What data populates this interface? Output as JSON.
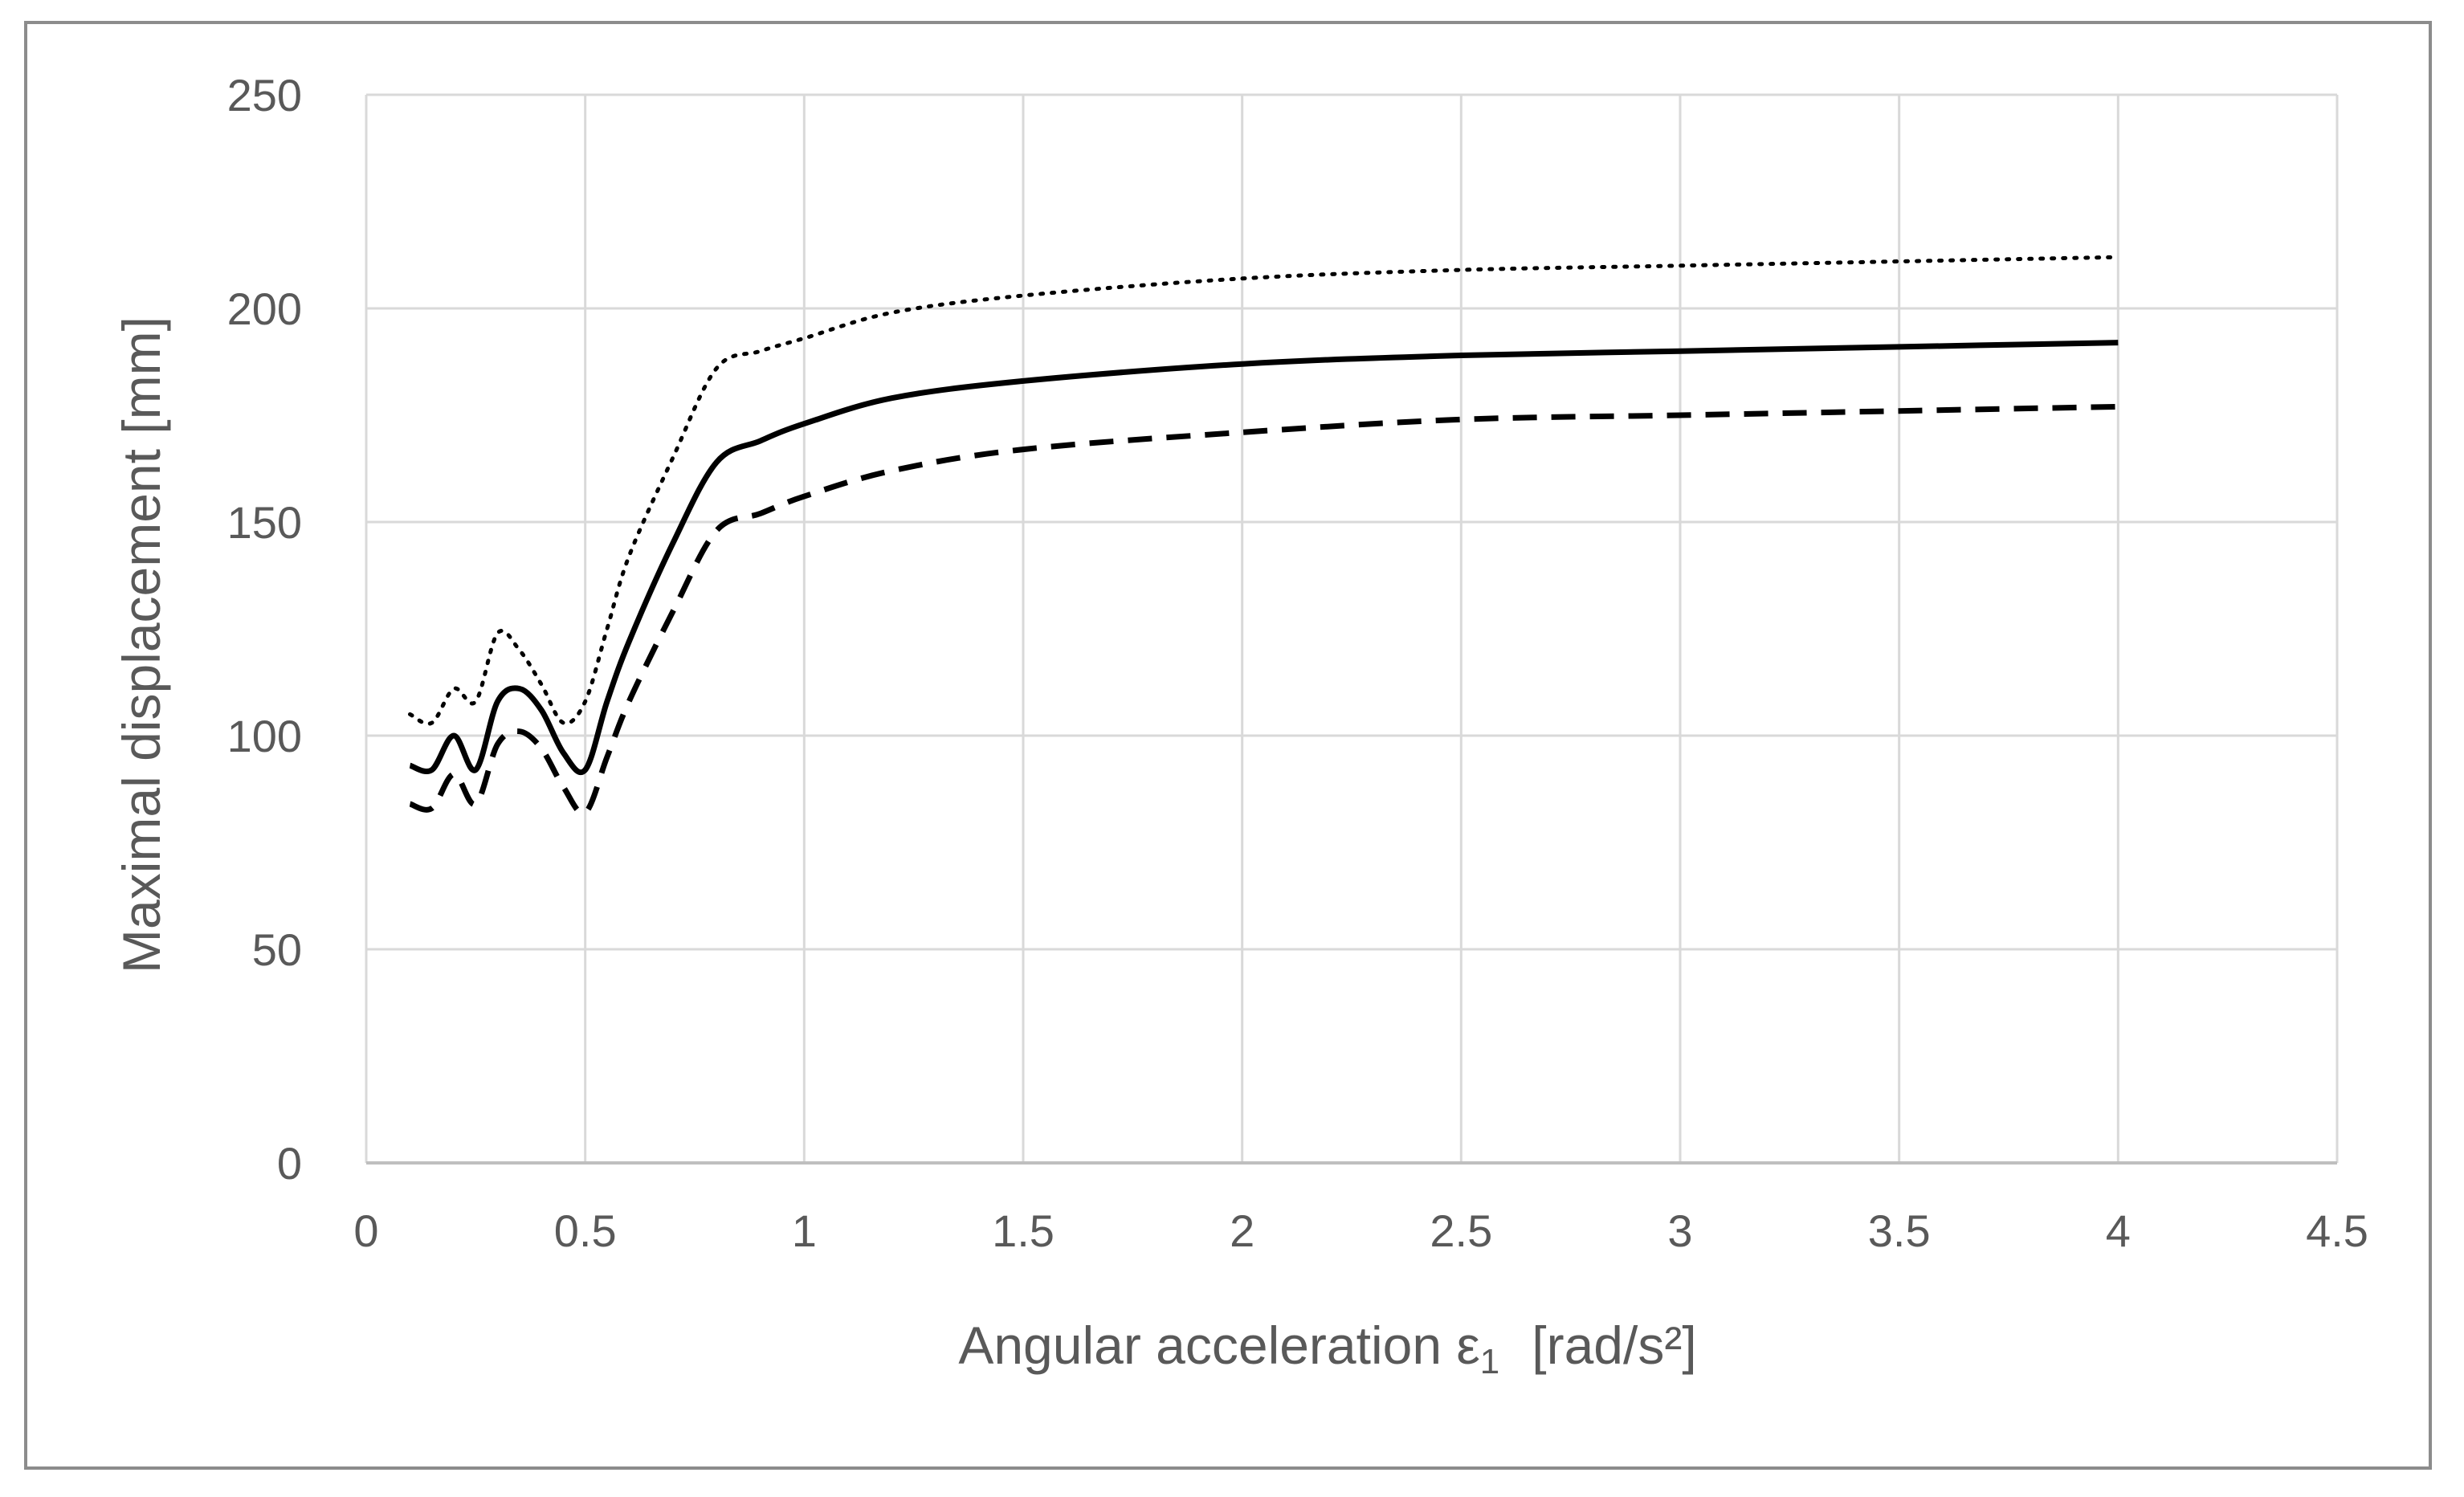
{
  "chart_data": {
    "type": "line",
    "title": "",
    "xlabel": "Angular acceleration ε",
    "xlabel_subscript": "1",
    "xlabel_units": "[rad/s²]",
    "ylabel": "Maximal displacement [mm]",
    "xlim": [
      0,
      4.5
    ],
    "ylim": [
      0,
      250
    ],
    "x_ticks": [
      "0",
      "0.5",
      "1",
      "1.5",
      "2",
      "2.5",
      "3",
      "3.5",
      "4",
      "4.5"
    ],
    "y_ticks": [
      "0",
      "50",
      "100",
      "150",
      "200",
      "250"
    ],
    "grid": true,
    "legend": "none",
    "series": [
      {
        "style": "dotted",
        "color": "#000000",
        "x": [
          0.1,
          0.15,
          0.2,
          0.25,
          0.3,
          0.35,
          0.4,
          0.45,
          0.5,
          0.55,
          0.6,
          0.7,
          0.8,
          0.9,
          1.0,
          1.2,
          1.5,
          2.0,
          2.5,
          3.0,
          3.5,
          4.0
        ],
        "y": [
          105,
          103,
          111,
          108,
          124,
          120,
          112,
          103,
          108,
          125,
          142,
          165,
          186,
          190,
          193,
          199,
          203,
          207,
          209,
          210,
          211,
          212
        ]
      },
      {
        "style": "solid",
        "color": "#000000",
        "x": [
          0.1,
          0.15,
          0.2,
          0.25,
          0.3,
          0.35,
          0.4,
          0.45,
          0.5,
          0.55,
          0.6,
          0.7,
          0.8,
          0.9,
          1.0,
          1.2,
          1.5,
          2.0,
          2.5,
          3.0,
          3.5,
          4.0
        ],
        "y": [
          93,
          92,
          100,
          92,
          108,
          111,
          106,
          96,
          92,
          108,
          122,
          145,
          164,
          169,
          173,
          179,
          183,
          187,
          189,
          190,
          191,
          192
        ]
      },
      {
        "style": "dashed",
        "color": "#000000",
        "x": [
          0.1,
          0.15,
          0.2,
          0.25,
          0.3,
          0.35,
          0.4,
          0.45,
          0.5,
          0.55,
          0.6,
          0.7,
          0.8,
          0.9,
          1.0,
          1.2,
          1.5,
          2.0,
          2.5,
          3.0,
          3.5,
          4.0
        ],
        "y": [
          84,
          83,
          91,
          84,
          98,
          101,
          97,
          88,
          82,
          95,
          108,
          129,
          148,
          152,
          156,
          162,
          167,
          171,
          174,
          175,
          176,
          177
        ]
      }
    ]
  }
}
